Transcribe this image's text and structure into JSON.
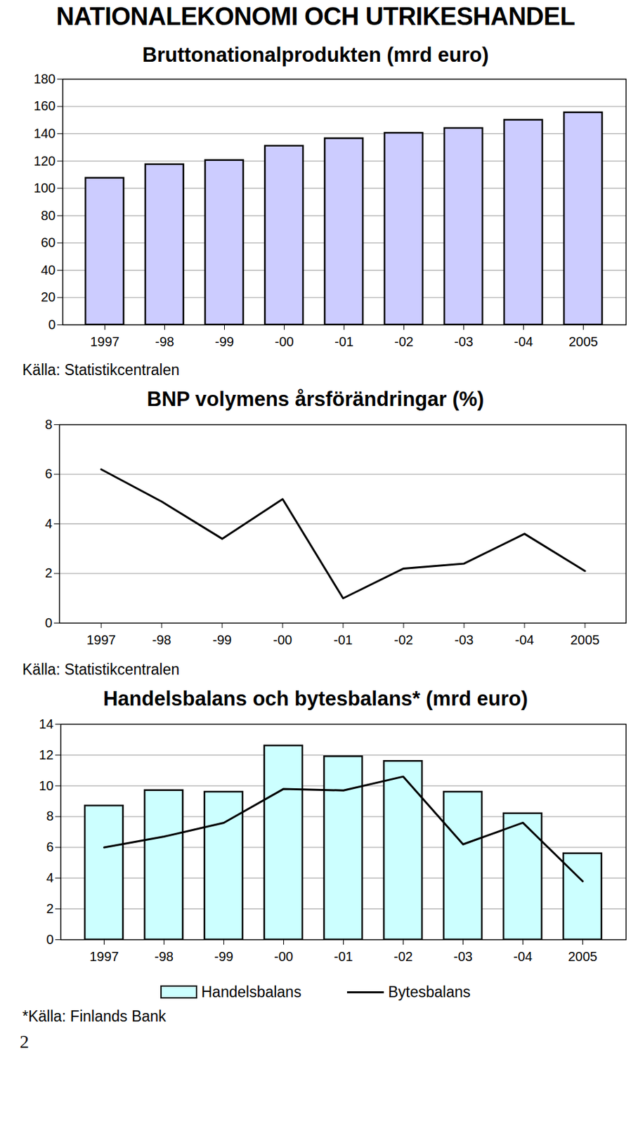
{
  "page_title": "NATIONALEKONOMI OCH UTRIKESHANDEL",
  "page_number": "2",
  "chart_data": [
    {
      "type": "bar",
      "title": "Bruttonationalprodukten (mrd euro)",
      "categories": [
        "1997",
        "-98",
        "-99",
        "-00",
        "-01",
        "-02",
        "-03",
        "-04",
        "2005"
      ],
      "values": [
        107.5,
        117.5,
        120.5,
        131,
        136.5,
        140.5,
        144,
        150,
        155.5
      ],
      "color": "#ccccff",
      "ylim": [
        0,
        180
      ],
      "yticks": [
        0,
        20,
        40,
        60,
        80,
        100,
        120,
        140,
        160,
        180
      ],
      "grid": true,
      "source": "Källa: Statistikcentralen"
    },
    {
      "type": "line",
      "title": "BNP volymens årsförändringar (%)",
      "categories": [
        "1997",
        "-98",
        "-99",
        "-00",
        "-01",
        "-02",
        "-03",
        "-04",
        "2005"
      ],
      "values": [
        6.2,
        4.9,
        3.4,
        5.0,
        1.0,
        2.2,
        2.4,
        3.6,
        2.1
      ],
      "color": "#000000",
      "ylim": [
        0,
        8
      ],
      "yticks": [
        0,
        2,
        4,
        6,
        8
      ],
      "grid": true,
      "source": "Källa: Statistikcentralen"
    },
    {
      "type": "combo",
      "title": "Handelsbalans och bytesbalans* (mrd euro)",
      "categories": [
        "1997",
        "-98",
        "-99",
        "-00",
        "-01",
        "-02",
        "-03",
        "-04",
        "2005"
      ],
      "series": [
        {
          "name": "Handelsbalans",
          "type": "bar",
          "color": "#ccffff",
          "values": [
            8.7,
            9.7,
            9.6,
            12.6,
            11.9,
            11.6,
            9.6,
            8.2,
            5.6
          ]
        },
        {
          "name": "Bytesbalans",
          "type": "line",
          "color": "#000000",
          "values": [
            6.0,
            6.7,
            7.6,
            9.8,
            9.7,
            10.6,
            6.2,
            7.6,
            3.8
          ]
        }
      ],
      "ylim": [
        0,
        14
      ],
      "yticks": [
        0,
        2,
        4,
        6,
        8,
        10,
        12,
        14
      ],
      "grid": true,
      "legend": "bottom",
      "source": "*Källa: Finlands Bank"
    }
  ]
}
